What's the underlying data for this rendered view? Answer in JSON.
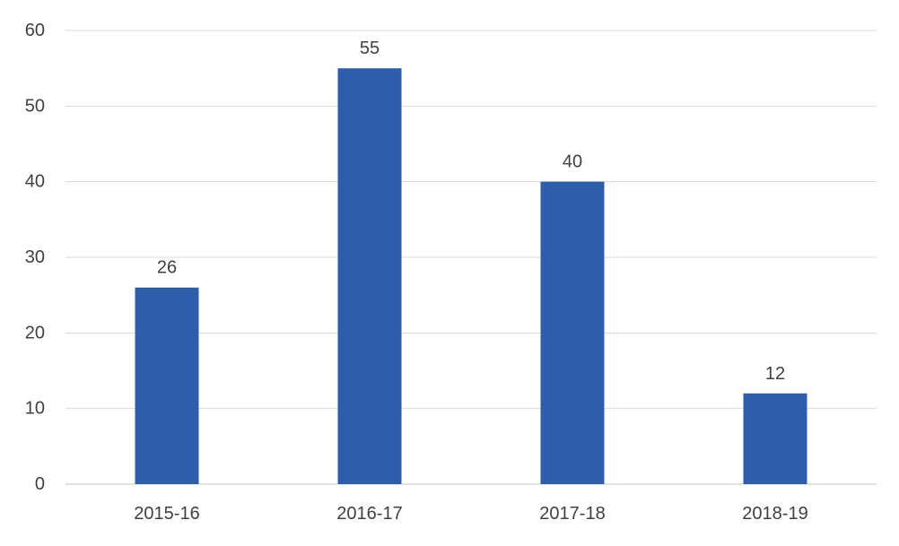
{
  "chart_data": {
    "type": "bar",
    "categories": [
      "2015-16",
      "2016-17",
      "2017-18",
      "2018-19"
    ],
    "values": [
      26,
      55,
      40,
      12
    ],
    "data_labels": [
      "26",
      "55",
      "40",
      "12"
    ],
    "title": "",
    "xlabel": "",
    "ylabel": "",
    "ylim": [
      0,
      60
    ],
    "yticks": [
      0,
      10,
      20,
      30,
      40,
      50,
      60
    ],
    "ytick_labels": [
      "0",
      "10",
      "20",
      "30",
      "40",
      "50",
      "60"
    ],
    "grid": true,
    "legend": "none",
    "colors": {
      "bar": "#2E5EAA",
      "grid": "#D9D9D9",
      "text": "#404040"
    }
  }
}
